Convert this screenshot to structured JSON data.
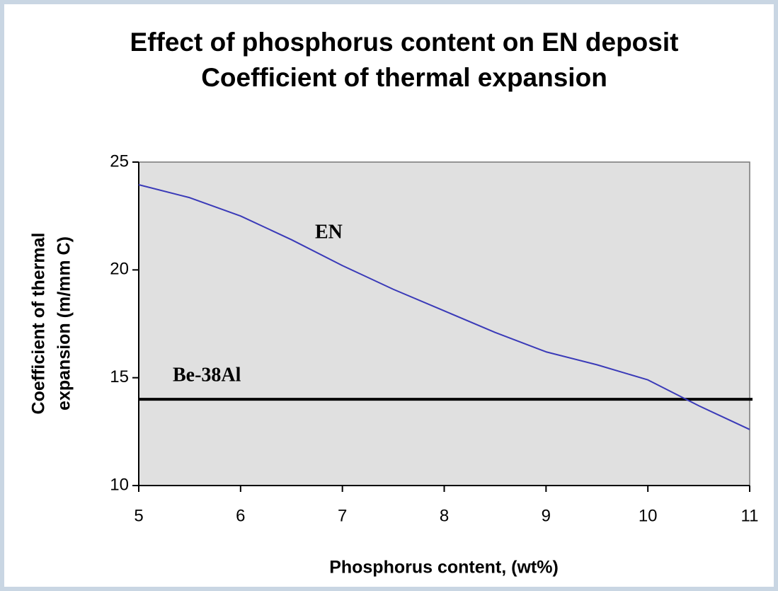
{
  "chart_data": {
    "type": "line",
    "title": "Effect of phosphorus content on EN deposit",
    "subtitle": "Coefficient of thermal expansion",
    "xlabel": "Phosphorus content, (wt%)",
    "ylabel": [
      "Coefficient of thermal",
      "expansion (m/mm C)"
    ],
    "x": [
      5,
      5.5,
      6,
      6.5,
      7,
      7.5,
      8,
      8.5,
      9,
      9.5,
      10,
      10.5,
      11
    ],
    "series": [
      {
        "name": "EN",
        "color": "#3a3ab8",
        "values": [
          23.95,
          23.35,
          22.5,
          21.4,
          20.2,
          19.1,
          18.1,
          17.1,
          16.2,
          15.6,
          14.9,
          13.7,
          12.6
        ]
      }
    ],
    "reference_lines": [
      {
        "label": "Be-38Al",
        "value": 14,
        "color": "#000000"
      }
    ],
    "xlim": [
      5,
      11
    ],
    "xticks": [
      5,
      6,
      7,
      8,
      9,
      10,
      11
    ],
    "ylim": [
      10,
      25
    ],
    "yticks": [
      10,
      15,
      20,
      25
    ],
    "plot_background": "#e0e0e0"
  }
}
